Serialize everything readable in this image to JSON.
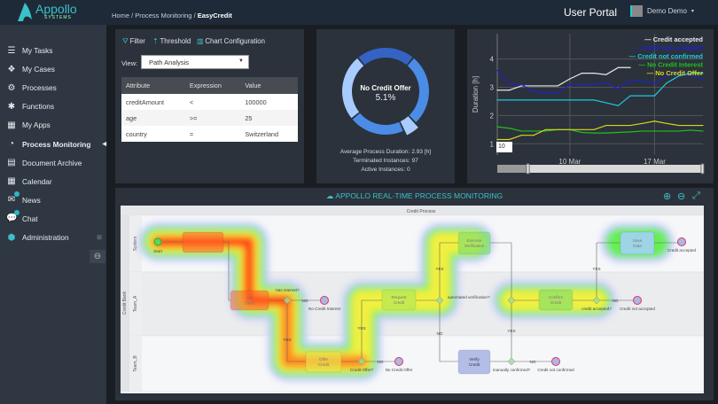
{
  "header": {
    "logo_name": "Appollo",
    "logo_sub": "SYSTEMS",
    "breadcrumb": [
      "Home",
      "Process Monitoring",
      "EasyCredit"
    ],
    "portal_title": "User Portal",
    "user_name": "Demo Demo"
  },
  "sidebar": {
    "items": [
      {
        "label": "My Tasks",
        "icon": "list-icon"
      },
      {
        "label": "My Cases",
        "icon": "cases-icon"
      },
      {
        "label": "Processes",
        "icon": "gears-icon"
      },
      {
        "label": "Functions",
        "icon": "gear-icon"
      },
      {
        "label": "My Apps",
        "icon": "grid-icon"
      },
      {
        "label": "Process Monitoring",
        "icon": "dashboard-icon",
        "active": true
      },
      {
        "label": "Document Archive",
        "icon": "archive-icon"
      },
      {
        "label": "Calendar",
        "icon": "calendar-icon"
      },
      {
        "label": "News",
        "icon": "envelope-icon",
        "badge": true
      },
      {
        "label": "Chat",
        "icon": "chat-icon",
        "badge": true
      },
      {
        "label": "Administration",
        "icon": "cube-icon"
      }
    ]
  },
  "filter": {
    "tools": [
      "Filter",
      "Threshold",
      "Chart Configuration"
    ],
    "view_label": "View:",
    "view_value": "Path Analysis",
    "columns": [
      "Attribute",
      "Expression",
      "Value"
    ],
    "rows": [
      [
        "creditAmount",
        "<",
        "100000"
      ],
      [
        "age",
        ">=",
        "25"
      ],
      [
        "country",
        "=",
        "Switzerland"
      ]
    ]
  },
  "donut": {
    "center_label": "No Credit Offer",
    "center_value": "5.1%",
    "segments": [
      {
        "value": 22,
        "color": "#3563c4"
      },
      {
        "value": 27,
        "color": "#4a8ce6"
      },
      {
        "value": 5.1,
        "color": "#a8ccff",
        "highlight": true
      },
      {
        "value": 21,
        "color": "#4a8ce6"
      },
      {
        "value": 24.9,
        "color": "#a8ccff"
      }
    ],
    "stats": [
      "Average Process Duration: 2.93 [h]",
      "Terminated Instances: 97",
      "Active Instances: 0"
    ]
  },
  "chart_data": {
    "type": "line",
    "ylabel": "Duration [h]",
    "ylim": [
      0.6,
      4.9
    ],
    "yticks": [
      1,
      2,
      3,
      4
    ],
    "x": [
      "Mar 4",
      "Mar 5",
      "Mar 6",
      "Mar 7",
      "Mar 8",
      "Mar 9",
      "Mar 10",
      "Mar 11",
      "Mar 12",
      "Mar 13",
      "Mar 14",
      "Mar 15",
      "Mar 16",
      "Mar 17",
      "Mar 18",
      "Mar 19",
      "Mar 20",
      "Mar 21"
    ],
    "xticks": [
      "10 Mar",
      "17 Mar"
    ],
    "range_input": "10",
    "legend": "top-right",
    "grid": true,
    "series": [
      {
        "name": "Credit accepted",
        "color": "#e8e8e8",
        "values": [
          2.9,
          2.9,
          3.05,
          3.05,
          3.05,
          3.05,
          3.3,
          3.5,
          3.5,
          3.45,
          3.7,
          3.7,
          null,
          null,
          null,
          null,
          null,
          null
        ]
      },
      {
        "name": "Credit not accepted",
        "color": "#2020d0",
        "values": [
          3.6,
          3.1,
          3.1,
          2.85,
          2.8,
          2.8,
          3.1,
          3.1,
          3.1,
          3.15,
          2.95,
          3.25,
          3.2,
          3.15,
          3.4,
          3.5,
          3.4,
          3.3
        ]
      },
      {
        "name": "Credit not confirmed",
        "color": "#1ec8dc",
        "values": [
          2.55,
          2.55,
          2.55,
          2.55,
          2.55,
          2.55,
          2.55,
          2.55,
          2.55,
          2.45,
          2.35,
          2.7,
          2.7,
          2.7,
          3.15,
          3.4,
          3.5,
          3.5
        ]
      },
      {
        "name": "No Credit Interest",
        "color": "#22c01e",
        "values": [
          1.6,
          1.55,
          1.45,
          1.45,
          1.45,
          1.5,
          1.5,
          1.4,
          1.38,
          1.38,
          1.4,
          1.42,
          1.45,
          1.45,
          1.45,
          1.45,
          1.48,
          1.45
        ]
      },
      {
        "name": "No Credit Offer",
        "color": "#d8d81a",
        "values": [
          1.15,
          1.15,
          1.3,
          1.3,
          1.5,
          1.5,
          1.5,
          1.5,
          1.5,
          1.65,
          1.65,
          1.65,
          1.72,
          1.8,
          1.72,
          1.65,
          1.65,
          1.65
        ]
      }
    ]
  },
  "monitor": {
    "title": "APPOLLO REAL-TIME PROCESS MONITORING",
    "pool_title": "Credit Process",
    "pool_label": "Credit Bank",
    "lanes": [
      "System",
      "Team_A",
      "Team_B"
    ],
    "tasks": [
      {
        "label": "",
        "heat": "high"
      },
      {
        "label": "Call Client",
        "heat": "high"
      },
      {
        "label": "Offer Credit",
        "heat": "medium"
      },
      {
        "label": "Request Credit",
        "heat": "low"
      },
      {
        "label": "Execute Verification",
        "heat": "low"
      },
      {
        "label": "Verify Credit",
        "heat": "none"
      },
      {
        "label": "Confirm Credit",
        "heat": "low"
      },
      {
        "label": "Save Data",
        "heat": "minimal"
      }
    ],
    "gateways": [
      "Has interest?",
      "Credit Offer?",
      "automated verification?",
      "manually confirmed?",
      "credit accepted?"
    ],
    "events": [
      "Start",
      "No Credit Interest",
      "No Credit Offer",
      "Credit not confirmed",
      "Credit not accepted",
      "Credit accepted"
    ],
    "flow_labels": {
      "yes": "YES",
      "no": "NO"
    }
  }
}
